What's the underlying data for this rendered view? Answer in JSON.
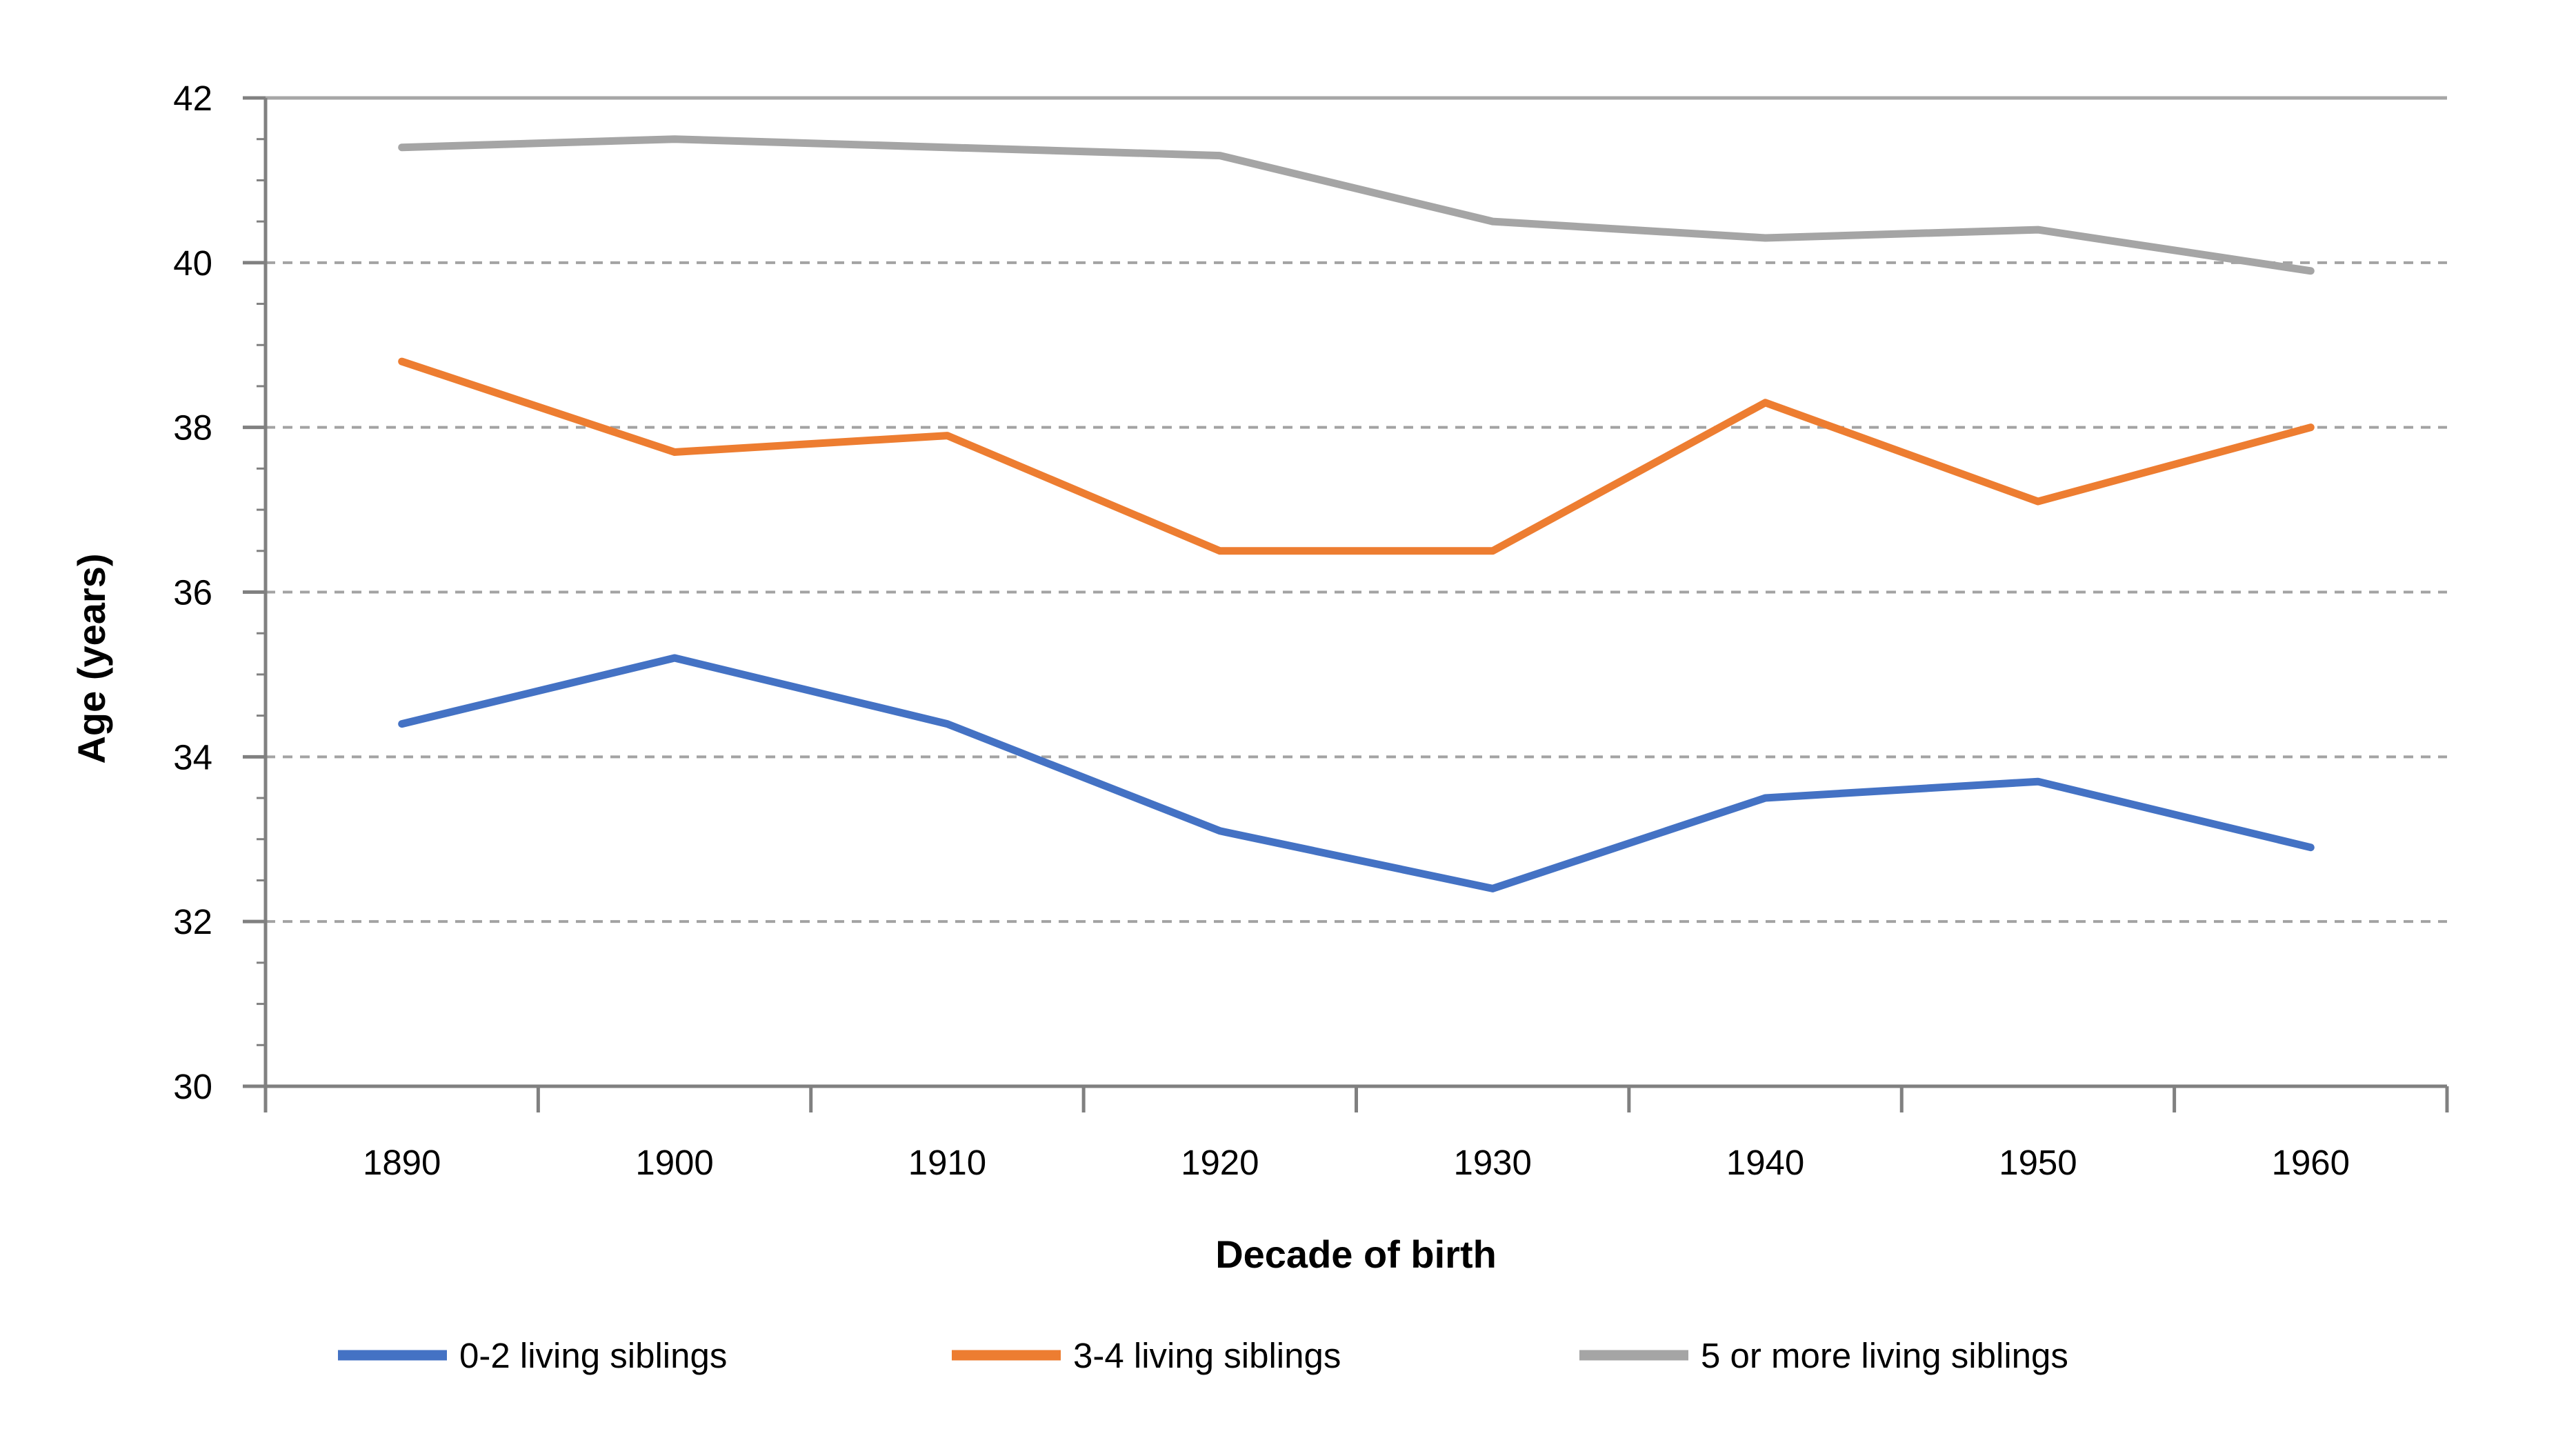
{
  "chart_data": {
    "type": "line",
    "title": "",
    "categories": [
      "1890",
      "1900",
      "1910",
      "1920",
      "1930",
      "1940",
      "1950",
      "1960"
    ],
    "series": [
      {
        "name": "0-2 living siblings",
        "color": "#4472C4",
        "values": [
          34.4,
          35.2,
          34.4,
          33.1,
          32.4,
          33.5,
          33.7,
          32.9
        ]
      },
      {
        "name": "3-4 living siblings",
        "color": "#ED7D31",
        "values": [
          38.8,
          37.7,
          37.9,
          36.5,
          36.5,
          38.3,
          37.1,
          38.0
        ]
      },
      {
        "name": "5 or more living siblings",
        "color": "#A5A5A5",
        "values": [
          41.4,
          41.5,
          41.4,
          41.3,
          40.5,
          40.3,
          40.4,
          39.9
        ]
      }
    ],
    "xlabel": "Decade of birth",
    "ylabel": "Age (years)",
    "ylim": [
      30,
      42
    ],
    "yticks": [
      30,
      32,
      34,
      36,
      38,
      40,
      42
    ],
    "y_minor_step": 0.5,
    "grid": "horizontal-dashed",
    "legend_position": "bottom",
    "colors": {
      "axis_line": "#808080",
      "gridline": "#A3A3A3",
      "plot_top_border": "#A6A6A6",
      "text": "#000000",
      "background": "#FFFFFF"
    }
  }
}
